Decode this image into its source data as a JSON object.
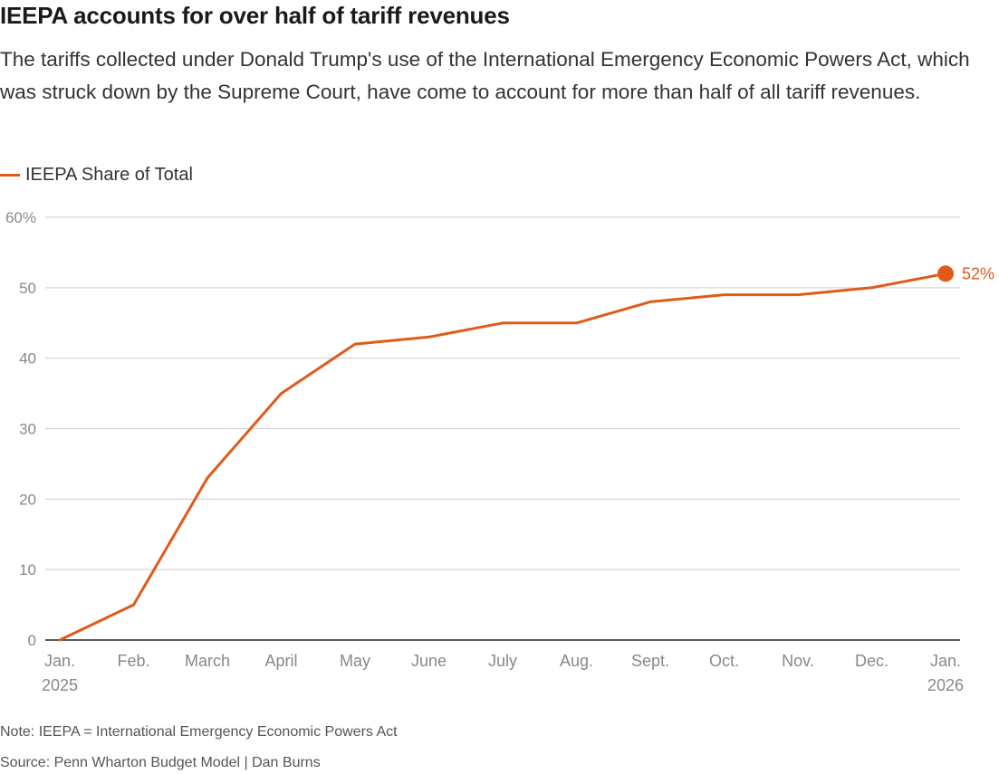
{
  "header": {
    "title": "IEEPA accounts for over half of tariff revenues",
    "subtitle": "The tariffs collected under Donald Trump's use of the International Emergency Economic Powers Act, which was struck down by the Supreme Court, have come to account for more than half of all tariff revenues."
  },
  "colors": {
    "series": "#e05a1a",
    "grid": "#cccccc",
    "axis": "#222222",
    "tick_text": "#888888"
  },
  "chart_data": {
    "type": "line",
    "title": "IEEPA accounts for over half of tariff revenues",
    "xlabel": "",
    "ylabel": "",
    "ylim": [
      0,
      60
    ],
    "yticks": [
      {
        "value": 0,
        "label": "0"
      },
      {
        "value": 10,
        "label": "10"
      },
      {
        "value": 20,
        "label": "20"
      },
      {
        "value": 30,
        "label": "30"
      },
      {
        "value": 40,
        "label": "40"
      },
      {
        "value": 50,
        "label": "50"
      },
      {
        "value": 60,
        "label": "60%"
      }
    ],
    "x": [
      "Jan. 2025",
      "Feb.",
      "March",
      "April",
      "May",
      "June",
      "July",
      "Aug.",
      "Sept.",
      "Oct.",
      "Nov.",
      "Dec.",
      "Jan. 2026"
    ],
    "xtick_labels": [
      {
        "line1": "Jan.",
        "line2": "2025"
      },
      {
        "line1": "Feb.",
        "line2": ""
      },
      {
        "line1": "March",
        "line2": ""
      },
      {
        "line1": "April",
        "line2": ""
      },
      {
        "line1": "May",
        "line2": ""
      },
      {
        "line1": "June",
        "line2": ""
      },
      {
        "line1": "July",
        "line2": ""
      },
      {
        "line1": "Aug.",
        "line2": ""
      },
      {
        "line1": "Sept.",
        "line2": ""
      },
      {
        "line1": "Oct.",
        "line2": ""
      },
      {
        "line1": "Nov.",
        "line2": ""
      },
      {
        "line1": "Dec.",
        "line2": ""
      },
      {
        "line1": "Jan.",
        "line2": "2026"
      }
    ],
    "series": [
      {
        "name": "IEEPA Share of Total",
        "values": [
          0,
          5,
          23,
          35,
          42,
          43,
          45,
          45,
          48,
          49,
          49,
          50,
          52
        ]
      }
    ],
    "end_label": "52%",
    "grid": true,
    "legend": "top-left"
  },
  "footer": {
    "note": "Note: IEEPA = International Emergency Economic Powers Act",
    "source": "Source: Penn Wharton Budget Model | Dan Burns"
  }
}
